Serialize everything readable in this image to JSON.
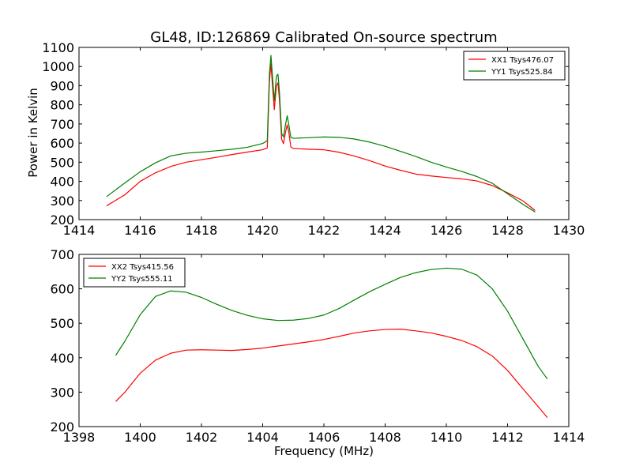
{
  "figure": {
    "title": "GL48, ID:126869 Calibrated On-source spectrum",
    "ylabel": "Power in Kelvin",
    "xlabel": "Frequency (MHz)"
  },
  "chart_data": [
    {
      "type": "line",
      "title": "GL48, ID:126869 Calibrated On-source spectrum",
      "xlabel": "",
      "ylabel": "Power in Kelvin",
      "xlim": [
        1414,
        1430
      ],
      "ylim": [
        200,
        1100
      ],
      "xticks": [
        1414,
        1416,
        1418,
        1420,
        1422,
        1424,
        1426,
        1428,
        1430
      ],
      "yticks": [
        200,
        300,
        400,
        500,
        600,
        700,
        800,
        900,
        1000,
        1100
      ],
      "grid": false,
      "legend_position": "top-right",
      "series": [
        {
          "name": "XX1 Tsys476.07",
          "color": "#ff0000",
          "points": [
            [
              1414.9,
              272
            ],
            [
              1415.5,
              330
            ],
            [
              1416,
              400
            ],
            [
              1416.5,
              445
            ],
            [
              1417,
              478
            ],
            [
              1417.5,
              500
            ],
            [
              1418,
              513
            ],
            [
              1418.5,
              526
            ],
            [
              1419,
              540
            ],
            [
              1419.5,
              553
            ],
            [
              1420,
              565
            ],
            [
              1420.15,
              575
            ],
            [
              1420.22,
              920
            ],
            [
              1420.27,
              1015
            ],
            [
              1420.32,
              900
            ],
            [
              1420.38,
              775
            ],
            [
              1420.45,
              900
            ],
            [
              1420.5,
              915
            ],
            [
              1420.55,
              820
            ],
            [
              1420.62,
              620
            ],
            [
              1420.68,
              597
            ],
            [
              1420.75,
              660
            ],
            [
              1420.8,
              695
            ],
            [
              1420.85,
              660
            ],
            [
              1420.92,
              580
            ],
            [
              1421,
              572
            ],
            [
              1421.5,
              568
            ],
            [
              1422,
              565
            ],
            [
              1422.5,
              552
            ],
            [
              1423,
              532
            ],
            [
              1423.5,
              508
            ],
            [
              1424,
              480
            ],
            [
              1424.5,
              458
            ],
            [
              1425,
              438
            ],
            [
              1425.5,
              428
            ],
            [
              1426,
              420
            ],
            [
              1426.5,
              413
            ],
            [
              1427,
              402
            ],
            [
              1427.5,
              378
            ],
            [
              1428,
              340
            ],
            [
              1428.5,
              298
            ],
            [
              1428.9,
              248
            ]
          ]
        },
        {
          "name": "YY1 Tsys525.84",
          "color": "#008000",
          "points": [
            [
              1414.9,
              320
            ],
            [
              1415.5,
              392
            ],
            [
              1416,
              450
            ],
            [
              1416.5,
              497
            ],
            [
              1417,
              533
            ],
            [
              1417.5,
              547
            ],
            [
              1418,
              553
            ],
            [
              1418.5,
              560
            ],
            [
              1419,
              568
            ],
            [
              1419.5,
              578
            ],
            [
              1420,
              598
            ],
            [
              1420.15,
              612
            ],
            [
              1420.22,
              960
            ],
            [
              1420.27,
              1058
            ],
            [
              1420.32,
              950
            ],
            [
              1420.38,
              820
            ],
            [
              1420.45,
              950
            ],
            [
              1420.5,
              960
            ],
            [
              1420.55,
              860
            ],
            [
              1420.62,
              650
            ],
            [
              1420.68,
              632
            ],
            [
              1420.75,
              700
            ],
            [
              1420.8,
              743
            ],
            [
              1420.85,
              700
            ],
            [
              1420.92,
              630
            ],
            [
              1421,
              625
            ],
            [
              1421.5,
              628
            ],
            [
              1422,
              632
            ],
            [
              1422.5,
              630
            ],
            [
              1423,
              621
            ],
            [
              1423.5,
              605
            ],
            [
              1424,
              583
            ],
            [
              1424.5,
              557
            ],
            [
              1425,
              530
            ],
            [
              1425.5,
              500
            ],
            [
              1426,
              475
            ],
            [
              1426.5,
              452
            ],
            [
              1427,
              425
            ],
            [
              1427.5,
              390
            ],
            [
              1428,
              335
            ],
            [
              1428.5,
              280
            ],
            [
              1428.9,
              240
            ]
          ]
        }
      ]
    },
    {
      "type": "line",
      "title": "",
      "xlabel": "Frequency (MHz)",
      "ylabel": "",
      "xlim": [
        1398,
        1414
      ],
      "ylim": [
        200,
        700
      ],
      "xticks": [
        1398,
        1400,
        1402,
        1404,
        1406,
        1408,
        1410,
        1412,
        1414
      ],
      "yticks": [
        200,
        300,
        400,
        500,
        600,
        700
      ],
      "grid": false,
      "legend_position": "top-left",
      "series": [
        {
          "name": "XX2 Tsys415.56",
          "color": "#ff0000",
          "points": [
            [
              1399.2,
              273
            ],
            [
              1399.5,
              300
            ],
            [
              1400,
              355
            ],
            [
              1400.5,
              393
            ],
            [
              1401,
              413
            ],
            [
              1401.5,
              422
            ],
            [
              1402,
              423
            ],
            [
              1402.5,
              422
            ],
            [
              1403,
              421
            ],
            [
              1403.5,
              424
            ],
            [
              1404,
              428
            ],
            [
              1404.5,
              434
            ],
            [
              1405,
              440
            ],
            [
              1405.5,
              446
            ],
            [
              1406,
              453
            ],
            [
              1406.5,
              462
            ],
            [
              1407,
              472
            ],
            [
              1407.5,
              478
            ],
            [
              1408,
              482
            ],
            [
              1408.5,
              483
            ],
            [
              1409,
              478
            ],
            [
              1409.5,
              472
            ],
            [
              1410,
              462
            ],
            [
              1410.5,
              450
            ],
            [
              1411,
              432
            ],
            [
              1411.5,
              405
            ],
            [
              1412,
              363
            ],
            [
              1412.5,
              310
            ],
            [
              1413,
              258
            ],
            [
              1413.3,
              226
            ]
          ]
        },
        {
          "name": "YY2 Tsys555.11",
          "color": "#008000",
          "points": [
            [
              1399.2,
              407
            ],
            [
              1399.5,
              448
            ],
            [
              1400,
              525
            ],
            [
              1400.5,
              578
            ],
            [
              1401,
              594
            ],
            [
              1401.5,
              590
            ],
            [
              1402,
              575
            ],
            [
              1402.5,
              555
            ],
            [
              1403,
              537
            ],
            [
              1403.5,
              523
            ],
            [
              1404,
              513
            ],
            [
              1404.5,
              508
            ],
            [
              1405,
              509
            ],
            [
              1405.5,
              514
            ],
            [
              1406,
              524
            ],
            [
              1406.5,
              543
            ],
            [
              1407,
              568
            ],
            [
              1407.5,
              592
            ],
            [
              1408,
              613
            ],
            [
              1408.5,
              633
            ],
            [
              1409,
              647
            ],
            [
              1409.5,
              656
            ],
            [
              1410,
              660
            ],
            [
              1410.5,
              657
            ],
            [
              1411,
              640
            ],
            [
              1411.5,
              600
            ],
            [
              1412,
              535
            ],
            [
              1412.5,
              455
            ],
            [
              1413,
              375
            ],
            [
              1413.3,
              338
            ]
          ]
        }
      ]
    }
  ]
}
